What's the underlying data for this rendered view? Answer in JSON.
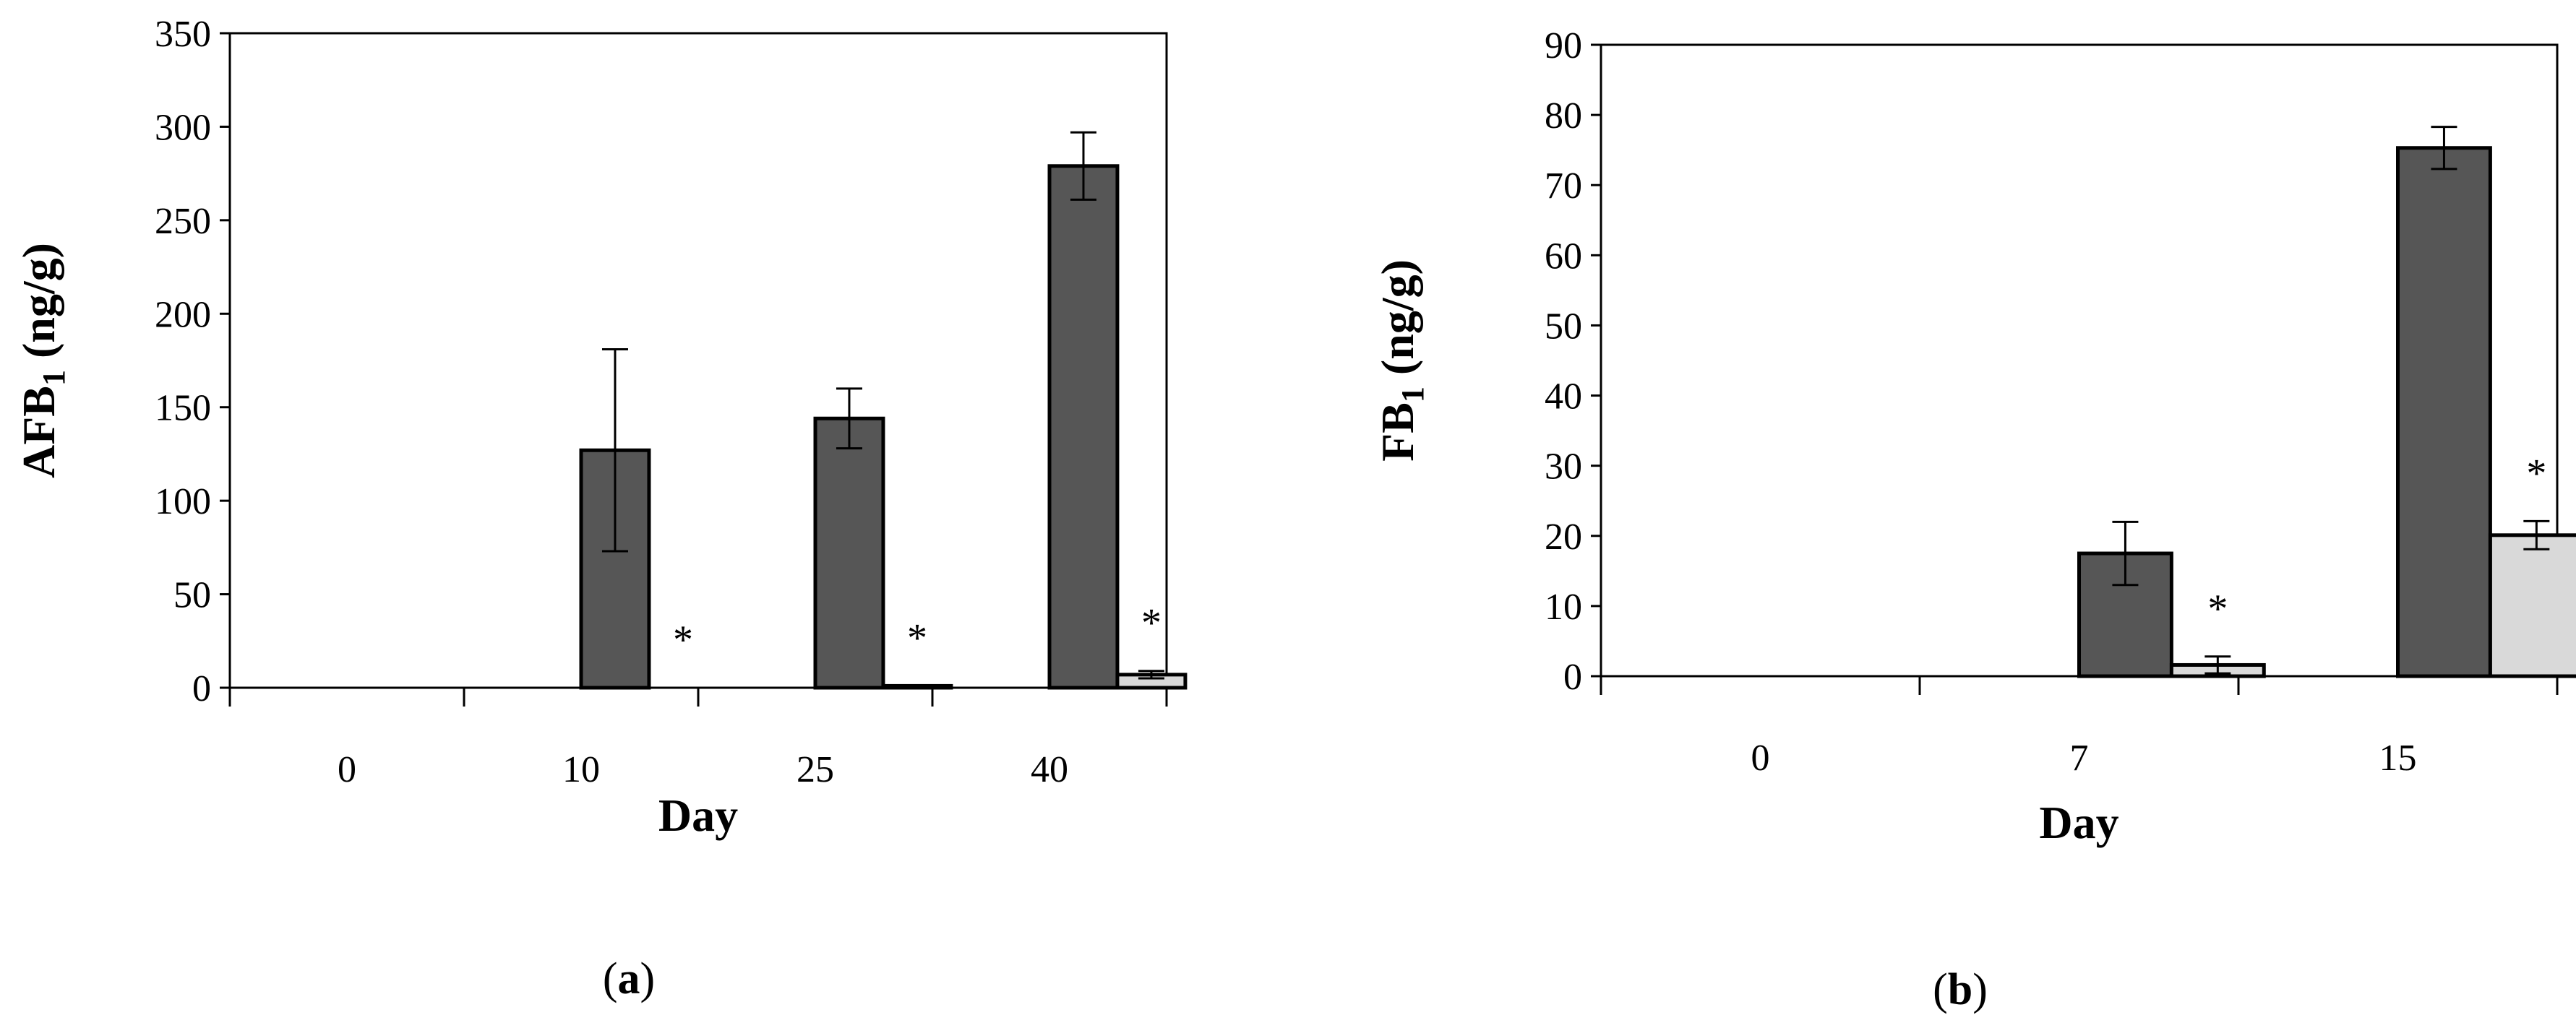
{
  "colors": {
    "series_dark": "#565656",
    "series_light": "#d9d9d9",
    "axis": "#000000"
  },
  "chart_data": [
    {
      "type": "bar",
      "panel": "a",
      "panel_label": {
        "open": "(",
        "letter": "a",
        "close": ")"
      },
      "xlabel": "Day",
      "ylabel": "AFB",
      "ylabel_sub": "1",
      "ylabel_unit": " (ng/g)",
      "ylim": [
        0,
        350
      ],
      "yticks": [
        0,
        50,
        100,
        150,
        200,
        250,
        300,
        350
      ],
      "categories": [
        "0",
        "10",
        "25",
        "40"
      ],
      "series": [
        {
          "values": [
            0,
            127,
            144,
            279
          ],
          "errors": [
            0,
            54,
            16,
            18
          ],
          "color": "#565656"
        },
        {
          "values": [
            0,
            0,
            1,
            7
          ],
          "errors": [
            0,
            0,
            0,
            2
          ],
          "color": "#d9d9d9"
        }
      ],
      "annotations": [
        {
          "category": "10",
          "text": "*"
        },
        {
          "category": "25",
          "text": "*"
        },
        {
          "category": "40",
          "text": "*"
        }
      ],
      "grid": false,
      "legend": "none"
    },
    {
      "type": "bar",
      "panel": "b",
      "panel_label": {
        "open": "(",
        "letter": "b",
        "close": ")"
      },
      "xlabel": "Day",
      "ylabel": "FB",
      "ylabel_sub": "1",
      "ylabel_unit": " (ng/g)",
      "ylim": [
        0,
        90
      ],
      "yticks": [
        0,
        10,
        20,
        30,
        40,
        50,
        60,
        70,
        80,
        90
      ],
      "categories": [
        "0",
        "7",
        "15"
      ],
      "series": [
        {
          "values": [
            0,
            17.5,
            75.3
          ],
          "errors": [
            0,
            4.5,
            3
          ],
          "color": "#565656"
        },
        {
          "values": [
            0,
            1.6,
            20.1
          ],
          "errors": [
            0,
            1.2,
            2
          ],
          "color": "#d9d9d9"
        }
      ],
      "annotations": [
        {
          "category": "7",
          "text": "*"
        },
        {
          "category": "15",
          "text": "*"
        }
      ],
      "grid": false,
      "legend": "none"
    }
  ]
}
